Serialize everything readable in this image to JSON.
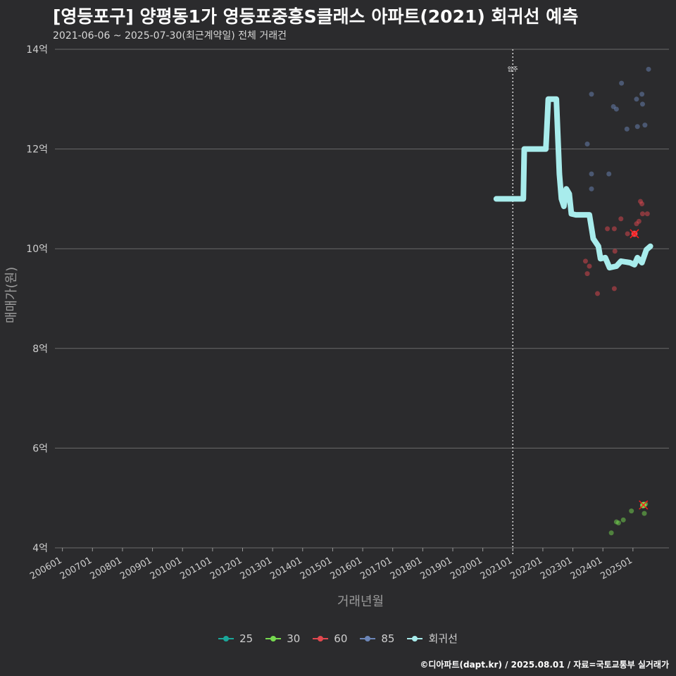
{
  "header": {
    "title": "[영등포구] 양평동1가 영등포중흥S클래스 아파트(2021) 회귀선 예측",
    "subtitle": "2021-06-06 ~ 2025-07-30(최근계약일) 전체 거래건"
  },
  "caption": "©디아파트(dapt.kr) / 2025.08.01 / 자료=국토교통부 실거래가",
  "chart_data": {
    "type": "scatter",
    "title": "[영등포구] 양평동1가 영등포중흥S클래스 아파트(2021) 회귀선 예측",
    "xlabel": "거래년월",
    "ylabel": "매매가(원)",
    "ylim": [
      4,
      14
    ],
    "xlim": [
      2005.75,
      2026.2
    ],
    "y_ticks": [
      4,
      6,
      8,
      10,
      12,
      14
    ],
    "y_tick_labels": [
      "4억",
      "6억",
      "8억",
      "10억",
      "12억",
      "14억"
    ],
    "x_ticks": [
      2006,
      2007,
      2008,
      2009,
      2010,
      2011,
      2012,
      2013,
      2014,
      2015,
      2016,
      2017,
      2018,
      2019,
      2020,
      2021,
      2022,
      2023,
      2024,
      2025
    ],
    "x_tick_labels": [
      "200601",
      "200701",
      "200801",
      "200901",
      "201001",
      "201101",
      "201201",
      "201301",
      "201401",
      "201501",
      "201601",
      "201701",
      "201801",
      "201901",
      "202001",
      "202101",
      "202201",
      "202301",
      "202401",
      "202501"
    ],
    "vline": {
      "x": 2021.0,
      "label": "입주"
    },
    "colors": {
      "25": "#1aa79a",
      "30": "#76d94f",
      "60": "#e2484f",
      "85": "#6c86b8",
      "regression": "#a8ecec"
    },
    "legend": [
      "25",
      "30",
      "60",
      "85",
      "회귀선"
    ],
    "series": [
      {
        "name": "25",
        "points": []
      },
      {
        "name": "30",
        "points": [
          {
            "x": 2024.28,
            "y": 4.3
          },
          {
            "x": 2024.45,
            "y": 4.52
          },
          {
            "x": 2024.52,
            "y": 4.5
          },
          {
            "x": 2024.68,
            "y": 4.56
          },
          {
            "x": 2024.95,
            "y": 4.74
          },
          {
            "x": 2025.32,
            "y": 4.84
          },
          {
            "x": 2025.42,
            "y": 4.88
          },
          {
            "x": 2025.38,
            "y": 4.69
          }
        ]
      },
      {
        "name": "60",
        "points": [
          {
            "x": 2023.42,
            "y": 9.75
          },
          {
            "x": 2023.48,
            "y": 9.5
          },
          {
            "x": 2023.55,
            "y": 9.65
          },
          {
            "x": 2023.82,
            "y": 9.1
          },
          {
            "x": 2024.15,
            "y": 10.4
          },
          {
            "x": 2024.38,
            "y": 10.4
          },
          {
            "x": 2024.4,
            "y": 9.95
          },
          {
            "x": 2024.38,
            "y": 9.2
          },
          {
            "x": 2024.6,
            "y": 10.6
          },
          {
            "x": 2024.82,
            "y": 10.3
          },
          {
            "x": 2025.05,
            "y": 10.3
          },
          {
            "x": 2025.12,
            "y": 10.5
          },
          {
            "x": 2025.2,
            "y": 10.55
          },
          {
            "x": 2025.25,
            "y": 10.95
          },
          {
            "x": 2025.3,
            "y": 10.9
          },
          {
            "x": 2025.32,
            "y": 10.7
          },
          {
            "x": 2025.48,
            "y": 10.7
          }
        ]
      },
      {
        "name": "85",
        "points": [
          {
            "x": 2023.48,
            "y": 12.1
          },
          {
            "x": 2023.62,
            "y": 13.1
          },
          {
            "x": 2023.62,
            "y": 11.5
          },
          {
            "x": 2023.62,
            "y": 11.2
          },
          {
            "x": 2024.2,
            "y": 11.5
          },
          {
            "x": 2024.35,
            "y": 12.85
          },
          {
            "x": 2024.45,
            "y": 12.8
          },
          {
            "x": 2024.62,
            "y": 13.32
          },
          {
            "x": 2024.8,
            "y": 12.4
          },
          {
            "x": 2025.12,
            "y": 13.0
          },
          {
            "x": 2025.15,
            "y": 12.45
          },
          {
            "x": 2025.3,
            "y": 13.1
          },
          {
            "x": 2025.32,
            "y": 12.9
          },
          {
            "x": 2025.4,
            "y": 12.48
          },
          {
            "x": 2025.52,
            "y": 13.6
          }
        ]
      },
      {
        "name": "회귀선",
        "points": [
          {
            "x": 2020.45,
            "y": 11.0
          },
          {
            "x": 2021.35,
            "y": 11.0
          },
          {
            "x": 2021.38,
            "y": 12.0
          },
          {
            "x": 2022.0,
            "y": 12.0
          },
          {
            "x": 2022.1,
            "y": 12.0
          },
          {
            "x": 2022.18,
            "y": 13.0
          },
          {
            "x": 2022.45,
            "y": 13.0
          },
          {
            "x": 2022.55,
            "y": 11.5
          },
          {
            "x": 2022.62,
            "y": 11.0
          },
          {
            "x": 2022.7,
            "y": 10.85
          },
          {
            "x": 2022.78,
            "y": 11.2
          },
          {
            "x": 2022.88,
            "y": 11.1
          },
          {
            "x": 2022.95,
            "y": 10.7
          },
          {
            "x": 2023.1,
            "y": 10.68
          },
          {
            "x": 2023.55,
            "y": 10.68
          },
          {
            "x": 2023.68,
            "y": 10.2
          },
          {
            "x": 2023.85,
            "y": 10.05
          },
          {
            "x": 2023.92,
            "y": 9.8
          },
          {
            "x": 2024.08,
            "y": 9.82
          },
          {
            "x": 2024.22,
            "y": 9.62
          },
          {
            "x": 2024.45,
            "y": 9.65
          },
          {
            "x": 2024.6,
            "y": 9.75
          },
          {
            "x": 2024.9,
            "y": 9.72
          },
          {
            "x": 2025.05,
            "y": 9.68
          },
          {
            "x": 2025.15,
            "y": 9.82
          },
          {
            "x": 2025.3,
            "y": 9.72
          },
          {
            "x": 2025.45,
            "y": 9.98
          },
          {
            "x": 2025.58,
            "y": 10.05
          }
        ]
      }
    ],
    "highlights": [
      {
        "x": 2025.05,
        "y": 10.3,
        "series": "60"
      },
      {
        "x": 2025.35,
        "y": 4.86,
        "series": "30"
      }
    ]
  }
}
